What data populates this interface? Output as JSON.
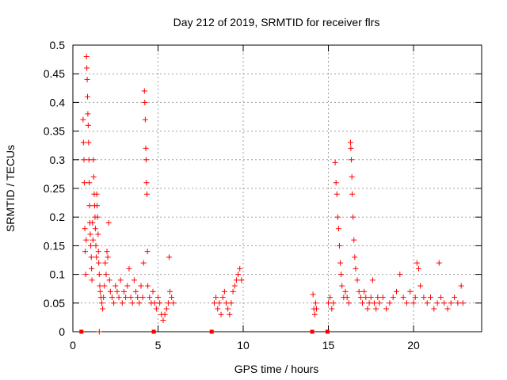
{
  "chart_data": {
    "type": "scatter",
    "title": "Day 212 of 2019, SRMTID for receiver flrs",
    "xlabel": "GPS time / hours",
    "ylabel": "SRMTID / TECUs",
    "xlim": [
      0,
      24
    ],
    "ylim": [
      0,
      0.5
    ],
    "x_ticks": [
      0,
      5,
      10,
      15,
      20
    ],
    "y_ticks": [
      0,
      0.05,
      0.1,
      0.15,
      0.2,
      0.25,
      0.3,
      0.35,
      0.4,
      0.45,
      0.5
    ],
    "y_tick_labels": [
      "0",
      "0.05",
      "0.1",
      "0.15",
      "0.2",
      "0.25",
      "0.3",
      "0.35",
      "0.4",
      "0.45",
      "0.5"
    ],
    "grid": true,
    "marker": "+",
    "color": "#ff0000",
    "series": [
      {
        "points": [
          [
            0.6,
            0.37
          ],
          [
            0.62,
            0.33
          ],
          [
            0.65,
            0.3
          ],
          [
            0.67,
            0.26
          ],
          [
            0.7,
            0.18
          ],
          [
            0.72,
            0.14
          ],
          [
            0.75,
            0.1
          ],
          [
            0.78,
            0.16
          ],
          [
            0.8,
            0.48
          ],
          [
            0.82,
            0.46
          ],
          [
            0.84,
            0.44
          ],
          [
            0.86,
            0.41
          ],
          [
            0.88,
            0.38
          ],
          [
            0.9,
            0.36
          ],
          [
            0.92,
            0.33
          ],
          [
            0.94,
            0.3
          ],
          [
            0.96,
            0.26
          ],
          [
            0.98,
            0.22
          ],
          [
            1.0,
            0.19
          ],
          [
            1.02,
            0.17
          ],
          [
            1.05,
            0.15
          ],
          [
            1.08,
            0.13
          ],
          [
            1.1,
            0.11
          ],
          [
            1.12,
            0.09
          ],
          [
            1.15,
            0.19
          ],
          [
            1.18,
            0.16
          ],
          [
            1.2,
            0.3
          ],
          [
            1.22,
            0.27
          ],
          [
            1.25,
            0.24
          ],
          [
            1.28,
            0.22
          ],
          [
            1.3,
            0.2
          ],
          [
            1.32,
            0.18
          ],
          [
            1.35,
            0.15
          ],
          [
            1.38,
            0.13
          ],
          [
            1.4,
            0.24
          ],
          [
            1.42,
            0.22
          ],
          [
            1.45,
            0.2
          ],
          [
            1.48,
            0.17
          ],
          [
            1.5,
            0.14
          ],
          [
            1.52,
            0.12
          ],
          [
            1.55,
            0.1
          ],
          [
            1.58,
            0.08
          ],
          [
            1.6,
            0.07
          ],
          [
            1.65,
            0.06
          ],
          [
            1.7,
            0.05
          ],
          [
            1.75,
            0.04
          ],
          [
            1.8,
            0.06
          ],
          [
            1.85,
            0.08
          ],
          [
            1.9,
            0.12
          ],
          [
            1.95,
            0.1
          ],
          [
            2.0,
            0.14
          ],
          [
            2.05,
            0.13
          ],
          [
            2.1,
            0.19
          ],
          [
            2.15,
            0.09
          ],
          [
            2.2,
            0.07
          ],
          [
            2.3,
            0.06
          ],
          [
            2.4,
            0.05
          ],
          [
            2.5,
            0.08
          ],
          [
            2.6,
            0.07
          ],
          [
            2.7,
            0.06
          ],
          [
            2.8,
            0.09
          ],
          [
            2.9,
            0.05
          ],
          [
            3.0,
            0.07
          ],
          [
            3.1,
            0.06
          ],
          [
            3.2,
            0.08
          ],
          [
            3.3,
            0.11
          ],
          [
            3.4,
            0.06
          ],
          [
            3.5,
            0.05
          ],
          [
            3.6,
            0.09
          ],
          [
            3.7,
            0.07
          ],
          [
            3.8,
            0.06
          ],
          [
            3.9,
            0.05
          ],
          [
            4.0,
            0.08
          ],
          [
            4.1,
            0.06
          ],
          [
            4.15,
            0.12
          ],
          [
            4.2,
            0.42
          ],
          [
            4.22,
            0.4
          ],
          [
            4.25,
            0.37
          ],
          [
            4.28,
            0.32
          ],
          [
            4.3,
            0.3
          ],
          [
            4.32,
            0.26
          ],
          [
            4.35,
            0.24
          ],
          [
            4.38,
            0.14
          ],
          [
            4.4,
            0.08
          ],
          [
            4.5,
            0.06
          ],
          [
            4.6,
            0.05
          ],
          [
            4.7,
            0.07
          ],
          [
            4.8,
            0.05
          ],
          [
            4.9,
            0.04
          ],
          [
            5.0,
            0.06
          ],
          [
            5.1,
            0.05
          ],
          [
            5.2,
            0.03
          ],
          [
            5.3,
            0.02
          ],
          [
            5.4,
            0.03
          ],
          [
            5.5,
            0.04
          ],
          [
            5.6,
            0.05
          ],
          [
            5.65,
            0.13
          ],
          [
            5.7,
            0.07
          ],
          [
            5.8,
            0.06
          ],
          [
            5.9,
            0.05
          ],
          [
            8.3,
            0.05
          ],
          [
            8.4,
            0.06
          ],
          [
            8.5,
            0.04
          ],
          [
            8.6,
            0.05
          ],
          [
            8.7,
            0.03
          ],
          [
            8.8,
            0.06
          ],
          [
            8.9,
            0.07
          ],
          [
            9.0,
            0.05
          ],
          [
            9.1,
            0.04
          ],
          [
            9.2,
            0.03
          ],
          [
            9.3,
            0.05
          ],
          [
            9.4,
            0.07
          ],
          [
            9.5,
            0.08
          ],
          [
            9.6,
            0.09
          ],
          [
            9.7,
            0.1
          ],
          [
            9.8,
            0.11
          ],
          [
            9.9,
            0.09
          ],
          [
            14.1,
            0.065
          ],
          [
            14.15,
            0.04
          ],
          [
            14.2,
            0.03
          ],
          [
            14.25,
            0.05
          ],
          [
            14.3,
            0.04
          ],
          [
            15.0,
            0.05
          ],
          [
            15.1,
            0.06
          ],
          [
            15.2,
            0.04
          ],
          [
            15.3,
            0.05
          ],
          [
            15.4,
            0.295
          ],
          [
            15.45,
            0.26
          ],
          [
            15.5,
            0.24
          ],
          [
            15.55,
            0.2
          ],
          [
            15.6,
            0.18
          ],
          [
            15.65,
            0.15
          ],
          [
            15.7,
            0.12
          ],
          [
            15.75,
            0.1
          ],
          [
            15.8,
            0.08
          ],
          [
            15.9,
            0.06
          ],
          [
            16.0,
            0.07
          ],
          [
            16.1,
            0.06
          ],
          [
            16.2,
            0.05
          ],
          [
            16.3,
            0.33
          ],
          [
            16.32,
            0.32
          ],
          [
            16.35,
            0.3
          ],
          [
            16.38,
            0.27
          ],
          [
            16.4,
            0.24
          ],
          [
            16.45,
            0.2
          ],
          [
            16.5,
            0.16
          ],
          [
            16.55,
            0.13
          ],
          [
            16.6,
            0.11
          ],
          [
            16.7,
            0.09
          ],
          [
            16.8,
            0.07
          ],
          [
            16.9,
            0.06
          ],
          [
            17.0,
            0.05
          ],
          [
            17.1,
            0.07
          ],
          [
            17.2,
            0.06
          ],
          [
            17.3,
            0.04
          ],
          [
            17.4,
            0.05
          ],
          [
            17.5,
            0.06
          ],
          [
            17.6,
            0.09
          ],
          [
            17.7,
            0.05
          ],
          [
            17.8,
            0.04
          ],
          [
            17.9,
            0.06
          ],
          [
            18.0,
            0.05
          ],
          [
            18.2,
            0.06
          ],
          [
            18.4,
            0.04
          ],
          [
            18.6,
            0.05
          ],
          [
            18.8,
            0.06
          ],
          [
            19.0,
            0.07
          ],
          [
            19.2,
            0.1
          ],
          [
            19.4,
            0.06
          ],
          [
            19.6,
            0.05
          ],
          [
            19.8,
            0.07
          ],
          [
            20.0,
            0.05
          ],
          [
            20.1,
            0.06
          ],
          [
            20.2,
            0.12
          ],
          [
            20.3,
            0.11
          ],
          [
            20.4,
            0.08
          ],
          [
            20.6,
            0.06
          ],
          [
            20.8,
            0.05
          ],
          [
            21.0,
            0.06
          ],
          [
            21.2,
            0.04
          ],
          [
            21.4,
            0.05
          ],
          [
            21.5,
            0.12
          ],
          [
            21.6,
            0.06
          ],
          [
            21.8,
            0.05
          ],
          [
            22.0,
            0.04
          ],
          [
            22.2,
            0.05
          ],
          [
            22.4,
            0.06
          ],
          [
            22.6,
            0.05
          ],
          [
            22.8,
            0.08
          ],
          [
            22.9,
            0.05
          ]
        ]
      },
      {
        "marker": "square",
        "points": [
          [
            0.5,
            0
          ],
          [
            4.75,
            0
          ],
          [
            8.15,
            0
          ],
          [
            14.05,
            0
          ],
          [
            14.95,
            0
          ]
        ]
      },
      {
        "marker": "+",
        "points": [
          [
            1.55,
            0
          ]
        ]
      }
    ]
  }
}
